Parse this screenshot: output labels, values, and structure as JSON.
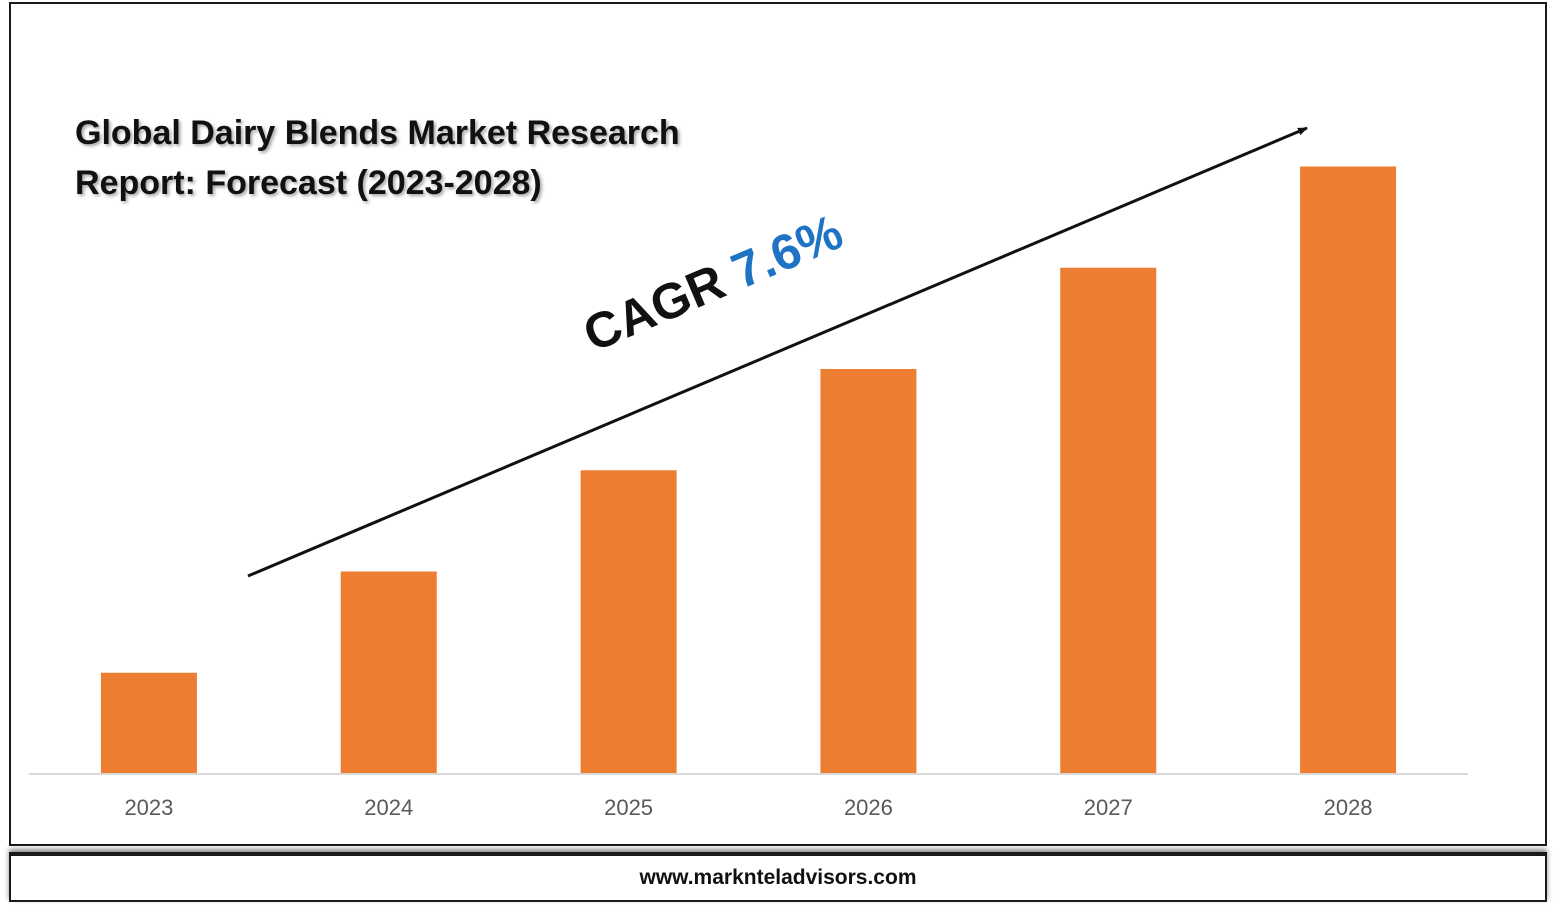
{
  "title": {
    "line1": "Global Dairy Blends Market Research",
    "line2": "Report: Forecast (2023-2028)"
  },
  "annotation": {
    "label": "CAGR",
    "value": "7.6%",
    "value_color": "#1f73c4"
  },
  "footer": {
    "website": "www.marknteladvisors.com"
  },
  "colors": {
    "bar": "#ed7d31",
    "axis": "#d9d9d9",
    "text": "#111111",
    "tick": "#595959"
  },
  "chart_data": {
    "type": "bar",
    "categories": [
      "2023",
      "2024",
      "2025",
      "2026",
      "2027",
      "2028"
    ],
    "values": [
      1,
      2,
      3,
      4,
      5,
      6
    ],
    "ylim": [
      0,
      6.4
    ],
    "grid": false,
    "legend": "none",
    "trend_arrow": true
  }
}
